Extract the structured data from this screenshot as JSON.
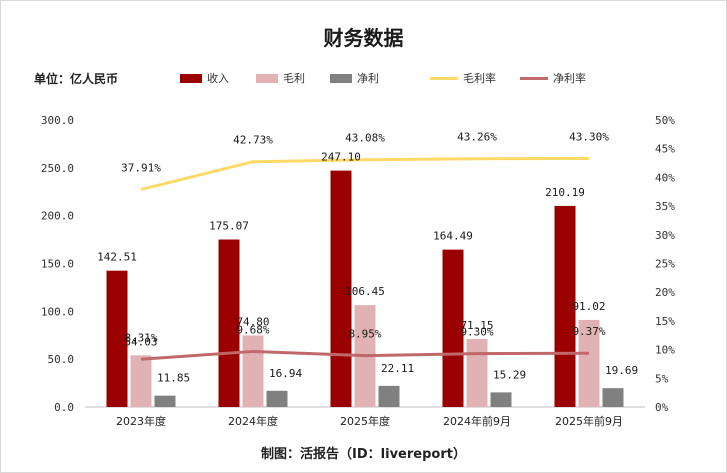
{
  "title": "财务数据",
  "unit_label": "单位：亿人民币",
  "source_label": "制图：活报告（ID：livereport）",
  "colors": {
    "revenue": "#9b0000",
    "gross_profit": "#e0b2b3",
    "net_profit": "#808080",
    "gross_margin": "#ffd966",
    "net_margin": "#c0686a"
  },
  "chart_data": {
    "type": "bar",
    "categories": [
      "2023年度",
      "2024年度",
      "2025年度",
      "2024年前9月",
      "2025年前9月"
    ],
    "series": [
      {
        "name": "收入",
        "kind": "bar",
        "axis": "left",
        "values": [
          142.51,
          175.07,
          247.1,
          164.49,
          210.19
        ],
        "labels": [
          "142.51",
          "175.07",
          "247.10",
          "164.49",
          "210.19"
        ]
      },
      {
        "name": "毛利",
        "kind": "bar",
        "axis": "left",
        "values": [
          54.03,
          74.8,
          106.45,
          71.15,
          91.02
        ],
        "labels": [
          "54.03",
          "74.80",
          "106.45",
          "71.15",
          "91.02"
        ]
      },
      {
        "name": "净利",
        "kind": "bar",
        "axis": "left",
        "values": [
          11.85,
          16.94,
          22.11,
          15.29,
          19.69
        ],
        "labels": [
          "11.85",
          "16.94",
          "22.11",
          "15.29",
          "19.69"
        ]
      },
      {
        "name": "毛利率",
        "kind": "line",
        "axis": "right",
        "values": [
          37.91,
          42.73,
          43.08,
          43.26,
          43.3
        ],
        "labels": [
          "37.91%",
          "42.73%",
          "43.08%",
          "43.26%",
          "43.30%"
        ]
      },
      {
        "name": "净利率",
        "kind": "line",
        "axis": "right",
        "values": [
          8.31,
          9.68,
          8.95,
          9.3,
          9.37
        ],
        "labels": [
          "8.31%",
          "9.68%",
          "8.95%",
          "9.30%",
          "9.37%"
        ]
      }
    ],
    "y_left": {
      "min": 0,
      "max": 300,
      "ticks": [
        "0.0",
        "50.0",
        "100.0",
        "150.0",
        "200.0",
        "250.0",
        "300.0"
      ]
    },
    "y_right": {
      "min": 0,
      "max": 50,
      "ticks": [
        "0%",
        "5%",
        "10%",
        "15%",
        "20%",
        "25%",
        "30%",
        "35%",
        "40%",
        "45%",
        "50%"
      ]
    },
    "grid": false,
    "legend_position": "top"
  }
}
